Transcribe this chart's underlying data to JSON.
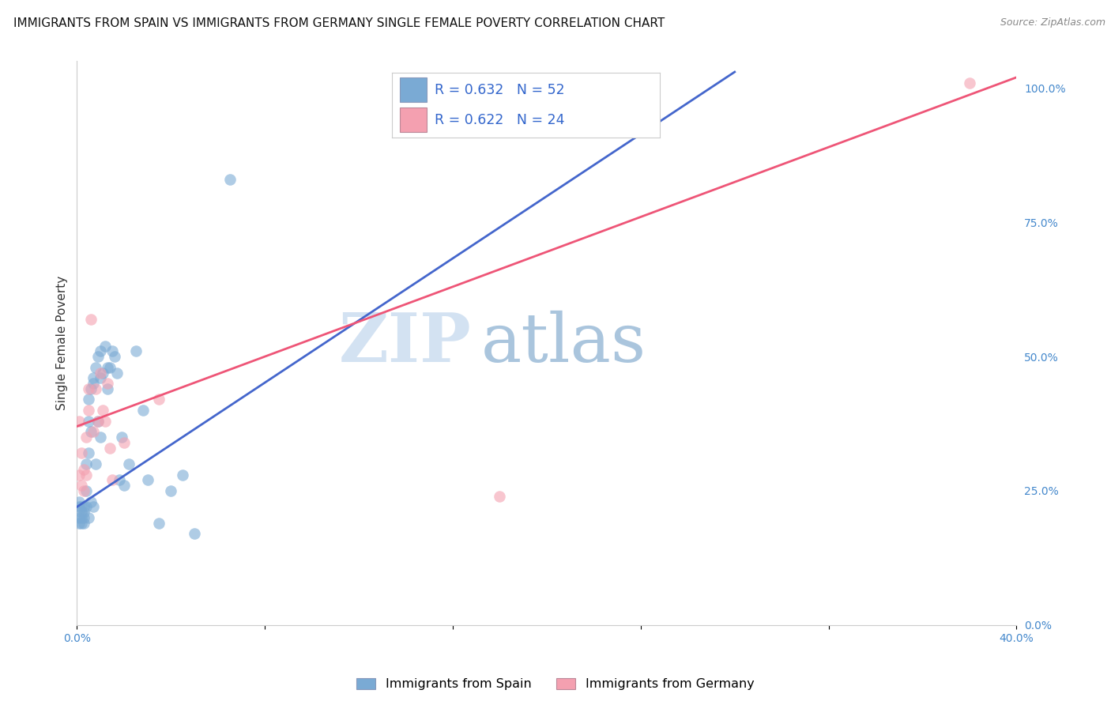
{
  "title": "IMMIGRANTS FROM SPAIN VS IMMIGRANTS FROM GERMANY SINGLE FEMALE POVERTY CORRELATION CHART",
  "source": "Source: ZipAtlas.com",
  "ylabel": "Single Female Poverty",
  "xlim": [
    0.0,
    0.4
  ],
  "ylim": [
    0.0,
    1.05
  ],
  "xticks": [
    0.0,
    0.08,
    0.16,
    0.24,
    0.32,
    0.4
  ],
  "xtick_labels": [
    "0.0%",
    "",
    "",
    "",
    "",
    "40.0%"
  ],
  "ytick_vals_right": [
    0.0,
    0.25,
    0.5,
    0.75,
    1.0
  ],
  "ytick_labels_right": [
    "0.0%",
    "25.0%",
    "50.0%",
    "75.0%",
    "100.0%"
  ],
  "legend_blue_label": "Immigrants from Spain",
  "legend_pink_label": "Immigrants from Germany",
  "r_blue": "0.632",
  "n_blue": "52",
  "r_pink": "0.622",
  "n_pink": "24",
  "blue_color": "#7AAAD4",
  "pink_color": "#F4A0B0",
  "blue_line_color": "#4466CC",
  "pink_line_color": "#EE5577",
  "watermark_zip": "ZIP",
  "watermark_atlas": "atlas",
  "background_color": "#FFFFFF",
  "grid_color": "#CCCCCC",
  "title_fontsize": 11,
  "axis_label_fontsize": 11,
  "tick_fontsize": 10,
  "legend_fontsize": 12,
  "spain_x": [
    0.001,
    0.001,
    0.001,
    0.001,
    0.002,
    0.002,
    0.002,
    0.002,
    0.003,
    0.003,
    0.003,
    0.003,
    0.004,
    0.004,
    0.004,
    0.005,
    0.005,
    0.005,
    0.005,
    0.006,
    0.006,
    0.006,
    0.007,
    0.007,
    0.007,
    0.008,
    0.008,
    0.009,
    0.009,
    0.01,
    0.01,
    0.01,
    0.011,
    0.012,
    0.013,
    0.013,
    0.014,
    0.015,
    0.016,
    0.017,
    0.018,
    0.019,
    0.02,
    0.022,
    0.025,
    0.028,
    0.03,
    0.035,
    0.04,
    0.045,
    0.05,
    0.065
  ],
  "spain_y": [
    0.22,
    0.23,
    0.2,
    0.19,
    0.21,
    0.22,
    0.19,
    0.2,
    0.21,
    0.22,
    0.2,
    0.19,
    0.25,
    0.3,
    0.22,
    0.42,
    0.38,
    0.32,
    0.2,
    0.44,
    0.36,
    0.23,
    0.46,
    0.45,
    0.22,
    0.48,
    0.3,
    0.5,
    0.38,
    0.51,
    0.46,
    0.35,
    0.47,
    0.52,
    0.48,
    0.44,
    0.48,
    0.51,
    0.5,
    0.47,
    0.27,
    0.35,
    0.26,
    0.3,
    0.51,
    0.4,
    0.27,
    0.19,
    0.25,
    0.28,
    0.17,
    0.83
  ],
  "germany_x": [
    0.001,
    0.001,
    0.002,
    0.002,
    0.003,
    0.003,
    0.004,
    0.004,
    0.005,
    0.005,
    0.006,
    0.007,
    0.008,
    0.009,
    0.01,
    0.011,
    0.012,
    0.013,
    0.014,
    0.015,
    0.02,
    0.035,
    0.18,
    0.38
  ],
  "germany_y": [
    0.38,
    0.28,
    0.26,
    0.32,
    0.29,
    0.25,
    0.35,
    0.28,
    0.4,
    0.44,
    0.57,
    0.36,
    0.44,
    0.38,
    0.47,
    0.4,
    0.38,
    0.45,
    0.33,
    0.27,
    0.34,
    0.42,
    0.24,
    1.01
  ],
  "blue_line_x": [
    0.0,
    0.28
  ],
  "blue_line_y": [
    0.22,
    1.03
  ],
  "pink_line_x": [
    0.0,
    0.4
  ],
  "pink_line_y": [
    0.37,
    1.02
  ]
}
